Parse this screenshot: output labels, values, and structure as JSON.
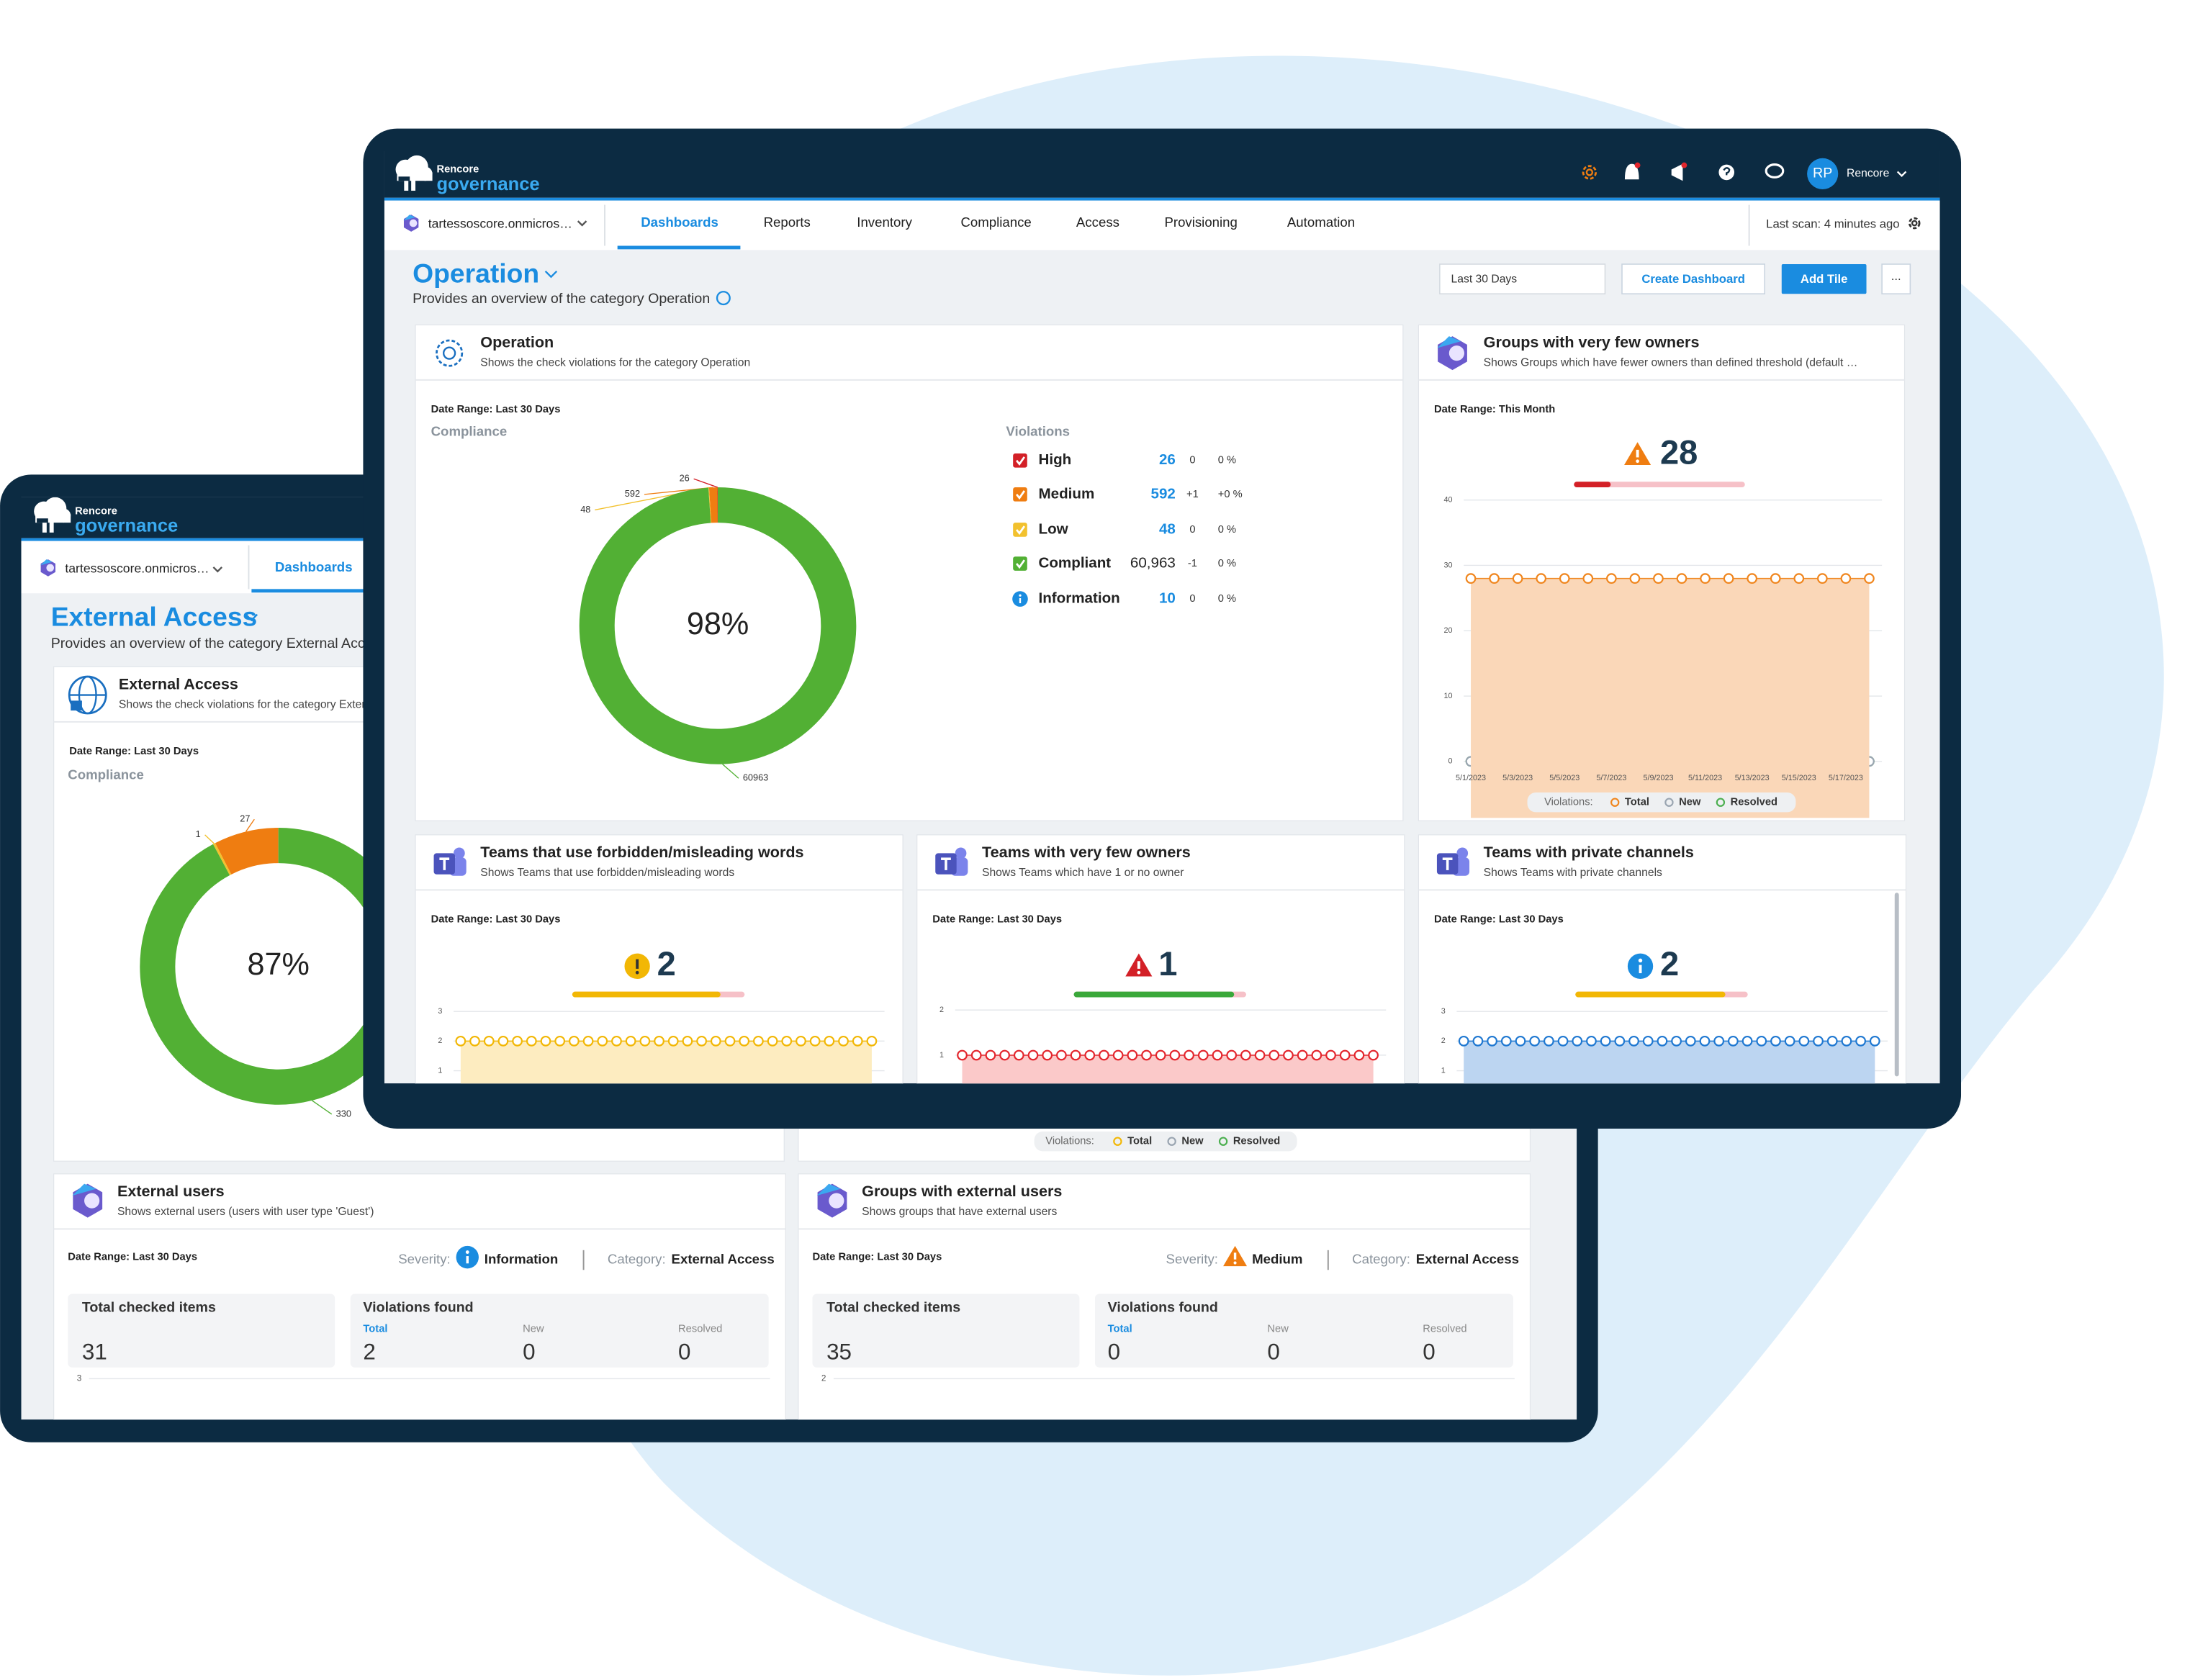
{
  "background_window": {
    "brand_company": "Rencore",
    "brand_product": "governance",
    "tenant": "tartessoscore.onmicros…",
    "nav_active": "Dashboards",
    "page_title": "External Access",
    "page_subtitle": "Provides an overview of the category External Access",
    "compliance_tile": {
      "title": "External Access",
      "subtitle": "Shows the check violations for the category External Access",
      "date_range": "Date Range: Last 30 Days",
      "section_label": "Compliance",
      "chart_data": {
        "type": "donut",
        "center_label": "87%",
        "values": [
          27,
          1,
          330
        ],
        "colors": [
          "#ef7d11",
          "#f2c12e",
          "#52b034"
        ]
      }
    },
    "hidden_tile_legend": {
      "title": "Violations:",
      "items": [
        {
          "name": "Total",
          "color": "#f2b705"
        },
        {
          "name": "New",
          "color": "#9aa5b1"
        },
        {
          "name": "Resolved",
          "color": "#4caf50"
        }
      ]
    },
    "summary_tiles": [
      {
        "title": "External users",
        "subtitle": "Shows external users (users with user type 'Guest')",
        "date_range": "Date Range: Last 30 Days",
        "severity_label": "Severity:",
        "severity": "Information",
        "category_label": "Category:",
        "category": "External Access",
        "checked_label": "Total checked items",
        "checked": 31,
        "violations_label": "Violations found",
        "total_label": "Total",
        "total": 2,
        "new_label": "New",
        "new": 0,
        "resolved_label": "Resolved",
        "resolved": 0,
        "axis_top_tick": 3
      },
      {
        "title": "Groups with external users",
        "subtitle": "Shows groups that have external users",
        "date_range": "Date Range: Last 30 Days",
        "severity_label": "Severity:",
        "severity": "Medium",
        "category_label": "Category:",
        "category": "External Access",
        "checked_label": "Total checked items",
        "checked": 35,
        "violations_label": "Violations found",
        "total_label": "Total",
        "total": 0,
        "new_label": "New",
        "new": 0,
        "resolved_label": "Resolved",
        "resolved": 0,
        "axis_top_tick": 2
      }
    ]
  },
  "main_window": {
    "brand_company": "Rencore",
    "brand_product": "governance",
    "tenant": "tartessoscore.onmicros…",
    "nav": [
      "Dashboards",
      "Reports",
      "Inventory",
      "Compliance",
      "Access",
      "Provisioning",
      "Automation"
    ],
    "last_scan": "Last scan: 4 minutes ago",
    "user_initials": "RP",
    "user_name": "Rencore",
    "page_title": "Operation",
    "page_subtitle": "Provides an overview of the category Operation",
    "date_filter": "Last 30 Days",
    "create_button": "Create Dashboard",
    "add_button": "Add Tile",
    "more_button": "...",
    "compliance_tile": {
      "title": "Operation",
      "subtitle": "Shows the check violations for the category Operation",
      "date_range": "Date Range: Last 30 Days",
      "section_label": "Compliance",
      "chart_data": {
        "type": "donut",
        "center_label": "98%",
        "values": [
          26,
          592,
          48,
          60963
        ],
        "colors": [
          "#d32027",
          "#ef7d11",
          "#f2c12e",
          "#52b034"
        ]
      },
      "violations_title": "Violations",
      "violations": [
        {
          "name": "High",
          "color": "#d32027",
          "count": 26,
          "change": 0,
          "percent": "0 %"
        },
        {
          "name": "Medium",
          "color": "#ef7d11",
          "count": 592,
          "change": "+1",
          "percent": "+0 %"
        },
        {
          "name": "Low",
          "color": "#f2c12e",
          "count": 48,
          "change": 0,
          "percent": "0 %"
        },
        {
          "name": "Compliant",
          "color": "#52b034",
          "count": "60,963",
          "change": -1,
          "percent": "0 %"
        },
        {
          "name": "Information",
          "color": "#1a8ce0",
          "count": 10,
          "change": 0,
          "percent": "0 %"
        }
      ]
    },
    "trend_tiles": [
      {
        "title": "Groups with very few owners",
        "subtitle": "Shows Groups which have fewer owners than defined threshold (default …",
        "date_range": "Date Range: This Month",
        "kpi": 28,
        "chart_data": {
          "type": "line",
          "categories": [
            "5/1/2023",
            null,
            "5/3/2023",
            null,
            "5/5/2023",
            null,
            "5/7/2023",
            null,
            "5/9/2023",
            null,
            "5/11/2023",
            null,
            "5/13/2023",
            null,
            "5/15/2023",
            null,
            "5/17/2023",
            null
          ],
          "ylim": [
            0,
            40
          ],
          "yticks": [
            0,
            10,
            20,
            30,
            40
          ],
          "series": [
            {
              "name": "Total",
              "color": "#f0861e",
              "fill": "#fad7b8",
              "values": [
                28,
                28,
                28,
                28,
                28,
                28,
                28,
                28,
                28,
                28,
                28,
                28,
                28,
                28,
                28,
                28,
                28,
                28
              ]
            },
            {
              "name": "New",
              "color": "#9aa5b1",
              "values": [
                0,
                0,
                0,
                0,
                0,
                0,
                0,
                0,
                0,
                0,
                0,
                0,
                0,
                0,
                0,
                0,
                0,
                0
              ]
            },
            {
              "name": "Resolved",
              "color": "#4caf50",
              "values": [
                0,
                0,
                0,
                0,
                0,
                0,
                0,
                0,
                0,
                0,
                0,
                0,
                0,
                0,
                0,
                0,
                0,
                0
              ]
            }
          ],
          "legend_title": "Violations:"
        }
      },
      {
        "title": "Teams that use forbidden/misleading words",
        "subtitle": "Shows Teams that use forbidden/misleading words",
        "date_range": "Date Range: Last 30 Days",
        "kpi": 2,
        "chart_data": {
          "type": "line",
          "ylim": [
            0,
            3
          ],
          "yticks": [
            1,
            2,
            3
          ],
          "series": [
            {
              "color": "#f2b705",
              "fill": "#fdecc0",
              "values": [
                2,
                2,
                2,
                2,
                2,
                2,
                2,
                2,
                2,
                2,
                2,
                2,
                2,
                2,
                2,
                2,
                2,
                2,
                2,
                2,
                2,
                2,
                2,
                2,
                2,
                2,
                2,
                2,
                2,
                2
              ]
            }
          ]
        }
      },
      {
        "title": "Teams with very few owners",
        "subtitle": "Shows Teams which have 1 or no owner",
        "date_range": "Date Range: Last 30 Days",
        "kpi": 1,
        "chart_data": {
          "type": "line",
          "ylim": [
            0,
            2
          ],
          "yticks": [
            1,
            2
          ],
          "series": [
            {
              "color": "#e3262d",
              "fill": "#fbc9c9",
              "values": [
                1,
                1,
                1,
                1,
                1,
                1,
                1,
                1,
                1,
                1,
                1,
                1,
                1,
                1,
                1,
                1,
                1,
                1,
                1,
                1,
                1,
                1,
                1,
                1,
                1,
                1,
                1,
                1,
                1,
                1
              ]
            }
          ]
        }
      },
      {
        "title": "Teams with private channels",
        "subtitle": "Shows Teams with private channels",
        "date_range": "Date Range: Last 30 Days",
        "kpi": 2,
        "chart_data": {
          "type": "line",
          "ylim": [
            0,
            3
          ],
          "yticks": [
            1,
            2,
            3
          ],
          "series": [
            {
              "color": "#1f78d1",
              "fill": "#bcd5f1",
              "values": [
                2,
                2,
                2,
                2,
                2,
                2,
                2,
                2,
                2,
                2,
                2,
                2,
                2,
                2,
                2,
                2,
                2,
                2,
                2,
                2,
                2,
                2,
                2,
                2,
                2,
                2,
                2,
                2,
                2,
                2
              ]
            }
          ]
        }
      }
    ]
  }
}
